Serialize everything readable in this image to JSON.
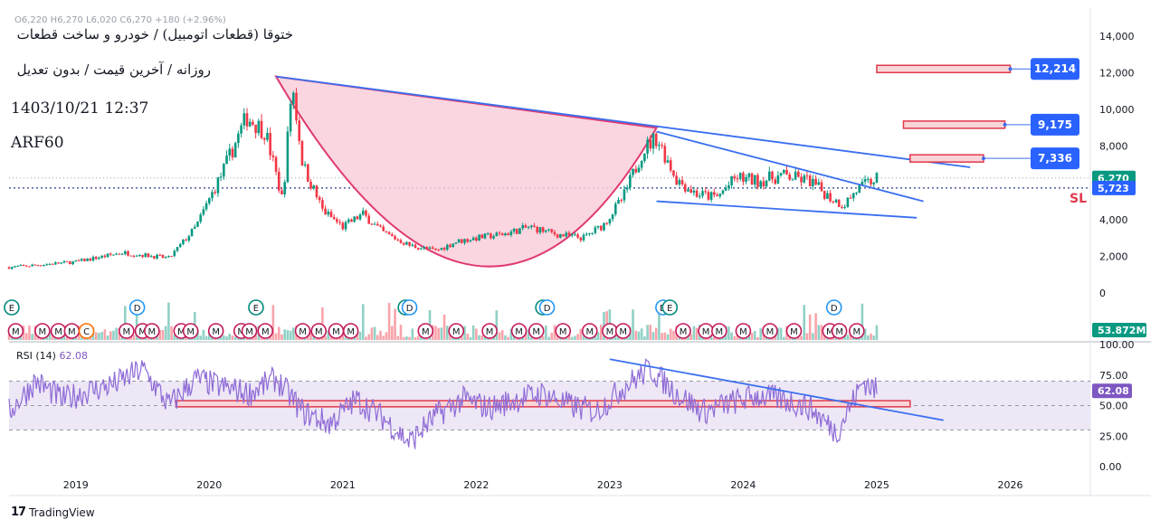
{
  "header": {
    "title_fa": "ختوقا (قطعات اتومبیل) / خودرو و ساخت قطعات",
    "subtitle_fa": "روزانه / آخرین قیمت / بدون تعدیل",
    "datetime": "1403/10/21 12:37",
    "author": "ARF60",
    "ohlc_line": "O6,220  H6,270  L6,020  C6,270  +180 (+2.96%)"
  },
  "footer": {
    "brand": "TradingView"
  },
  "colors": {
    "up": "#089981",
    "down": "#f23645",
    "trend": "#3a6ff0",
    "cup_fill": "#f9cfdc",
    "cup_stroke": "#e03a6e",
    "rsi": "#8e6bd6",
    "rsi_band": "#ede7f6",
    "target_fill": "#f9d5d8",
    "target_stroke": "#e0394b",
    "label_bg": "#2962ff",
    "last_price": "#089981"
  },
  "chart_data": [
    {
      "type": "candlestick",
      "y_ticks": [
        "14,000",
        "12,000",
        "10,000",
        "8,000",
        "6,000",
        "4,000",
        "2,000",
        "0"
      ],
      "ylim": [
        0,
        14000
      ],
      "x_ticks": [
        "2019",
        "2020",
        "2021",
        "2022",
        "2023",
        "2024",
        "2025",
        "2026"
      ],
      "close_path": [
        [
          2018.5,
          1400
        ],
        [
          2019.0,
          1700
        ],
        [
          2019.35,
          2200
        ],
        [
          2019.7,
          1900
        ],
        [
          2019.9,
          3600
        ],
        [
          2020.1,
          6600
        ],
        [
          2020.28,
          9600
        ],
        [
          2020.42,
          8800
        ],
        [
          2020.55,
          5000
        ],
        [
          2020.62,
          11500
        ],
        [
          2020.7,
          7000
        ],
        [
          2020.85,
          4500
        ],
        [
          2021.0,
          3600
        ],
        [
          2021.15,
          4300
        ],
        [
          2021.3,
          3300
        ],
        [
          2021.5,
          2600
        ],
        [
          2021.7,
          2300
        ],
        [
          2021.85,
          2800
        ],
        [
          2022.0,
          3000
        ],
        [
          2022.2,
          3200
        ],
        [
          2022.4,
          3600
        ],
        [
          2022.6,
          3200
        ],
        [
          2022.8,
          3000
        ],
        [
          2022.95,
          3700
        ],
        [
          2023.1,
          5200
        ],
        [
          2023.25,
          7800
        ],
        [
          2023.35,
          8500
        ],
        [
          2023.5,
          6200
        ],
        [
          2023.65,
          5400
        ],
        [
          2023.8,
          5200
        ],
        [
          2023.95,
          6300
        ],
        [
          2024.1,
          6100
        ],
        [
          2024.3,
          6400
        ],
        [
          2024.5,
          6100
        ],
        [
          2024.65,
          5200
        ],
        [
          2024.75,
          4800
        ],
        [
          2024.85,
          5600
        ],
        [
          2025.0,
          6270
        ]
      ],
      "last_price": "6,270",
      "stop_loss": "5,723",
      "stop_label": "SL",
      "targets": [
        {
          "label": "12,214",
          "value": 12214
        },
        {
          "label": "9,175",
          "value": 9175
        },
        {
          "label": "7,336",
          "value": 7336
        }
      ],
      "cup": {
        "left": [
          2020.5,
          11800
        ],
        "bottom": [
          2022.05,
          1500
        ],
        "right": [
          2023.35,
          9000
        ]
      },
      "trendlines": [
        {
          "from": [
            2020.5,
            11800
          ],
          "to": [
            2025.7,
            6850
          ]
        },
        {
          "from": [
            2023.35,
            8800
          ],
          "to": [
            2025.35,
            5000
          ]
        },
        {
          "from": [
            2023.35,
            5000
          ],
          "to": [
            2025.3,
            4100
          ]
        }
      ],
      "volume_value": "53.872M",
      "event_markers": [
        {
          "x": 2018.52,
          "symbol": "E"
        },
        {
          "x": 2018.55,
          "symbol": "M"
        },
        {
          "x": 2018.75,
          "symbol": "M"
        },
        {
          "x": 2018.87,
          "symbol": "M"
        },
        {
          "x": 2018.97,
          "symbol": "M"
        },
        {
          "x": 2019.08,
          "symbol": "C"
        },
        {
          "x": 2019.38,
          "symbol": "M"
        },
        {
          "x": 2019.46,
          "symbol": "D"
        },
        {
          "x": 2019.5,
          "symbol": "M"
        },
        {
          "x": 2019.57,
          "symbol": "M"
        },
        {
          "x": 2019.79,
          "symbol": "M"
        },
        {
          "x": 2019.86,
          "symbol": "M"
        },
        {
          "x": 2020.05,
          "symbol": "M"
        },
        {
          "x": 2020.24,
          "symbol": "M"
        },
        {
          "x": 2020.3,
          "symbol": "M"
        },
        {
          "x": 2020.35,
          "symbol": "E"
        },
        {
          "x": 2020.42,
          "symbol": "M"
        },
        {
          "x": 2020.7,
          "symbol": "M"
        },
        {
          "x": 2020.82,
          "symbol": "M"
        },
        {
          "x": 2020.95,
          "symbol": "M"
        },
        {
          "x": 2021.06,
          "symbol": "M"
        },
        {
          "x": 2021.47,
          "symbol": "E"
        },
        {
          "x": 2021.5,
          "symbol": "D"
        },
        {
          "x": 2021.62,
          "symbol": "M"
        },
        {
          "x": 2021.85,
          "symbol": "M"
        },
        {
          "x": 2022.1,
          "symbol": "M"
        },
        {
          "x": 2022.32,
          "symbol": "M"
        },
        {
          "x": 2022.45,
          "symbol": "M"
        },
        {
          "x": 2022.5,
          "symbol": "E"
        },
        {
          "x": 2022.53,
          "symbol": "D"
        },
        {
          "x": 2022.65,
          "symbol": "M"
        },
        {
          "x": 2022.85,
          "symbol": "M"
        },
        {
          "x": 2023.0,
          "symbol": "M"
        },
        {
          "x": 2023.1,
          "symbol": "M"
        },
        {
          "x": 2023.4,
          "symbol": "D"
        },
        {
          "x": 2023.45,
          "symbol": "E"
        },
        {
          "x": 2023.55,
          "symbol": "M"
        },
        {
          "x": 2023.72,
          "symbol": "M"
        },
        {
          "x": 2023.82,
          "symbol": "M"
        },
        {
          "x": 2024.0,
          "symbol": "M"
        },
        {
          "x": 2024.2,
          "symbol": "M"
        },
        {
          "x": 2024.38,
          "symbol": "M"
        },
        {
          "x": 2024.65,
          "symbol": "M"
        },
        {
          "x": 2024.68,
          "symbol": "D"
        },
        {
          "x": 2024.72,
          "symbol": "M"
        },
        {
          "x": 2024.85,
          "symbol": "M"
        }
      ]
    },
    {
      "type": "line",
      "title": "RSI (14)",
      "current_value": "62.08",
      "y_ticks": [
        "100.00",
        "75.00",
        "50.00",
        "25.00",
        "0.00"
      ],
      "ylim": [
        0,
        100
      ],
      "band": [
        30,
        70
      ],
      "x": [
        2018.5,
        2018.7,
        2018.9,
        2019.1,
        2019.3,
        2019.5,
        2019.7,
        2019.9,
        2020.1,
        2020.3,
        2020.5,
        2020.7,
        2020.9,
        2021.1,
        2021.3,
        2021.5,
        2021.7,
        2021.9,
        2022.1,
        2022.3,
        2022.5,
        2022.7,
        2022.9,
        2023.1,
        2023.3,
        2023.5,
        2023.7,
        2023.9,
        2024.1,
        2024.3,
        2024.5,
        2024.7,
        2024.9,
        2025.0
      ],
      "values": [
        45,
        70,
        55,
        62,
        68,
        80,
        50,
        72,
        65,
        60,
        72,
        45,
        35,
        55,
        40,
        20,
        42,
        55,
        48,
        55,
        60,
        50,
        45,
        65,
        80,
        60,
        45,
        52,
        58,
        55,
        48,
        28,
        70,
        62
      ],
      "support_zone": {
        "from": 2019.75,
        "to": 2025.25,
        "low": 49,
        "high": 54
      },
      "trendline": {
        "from": [
          2023.0,
          88
        ],
        "to": [
          2025.5,
          38
        ]
      }
    }
  ]
}
